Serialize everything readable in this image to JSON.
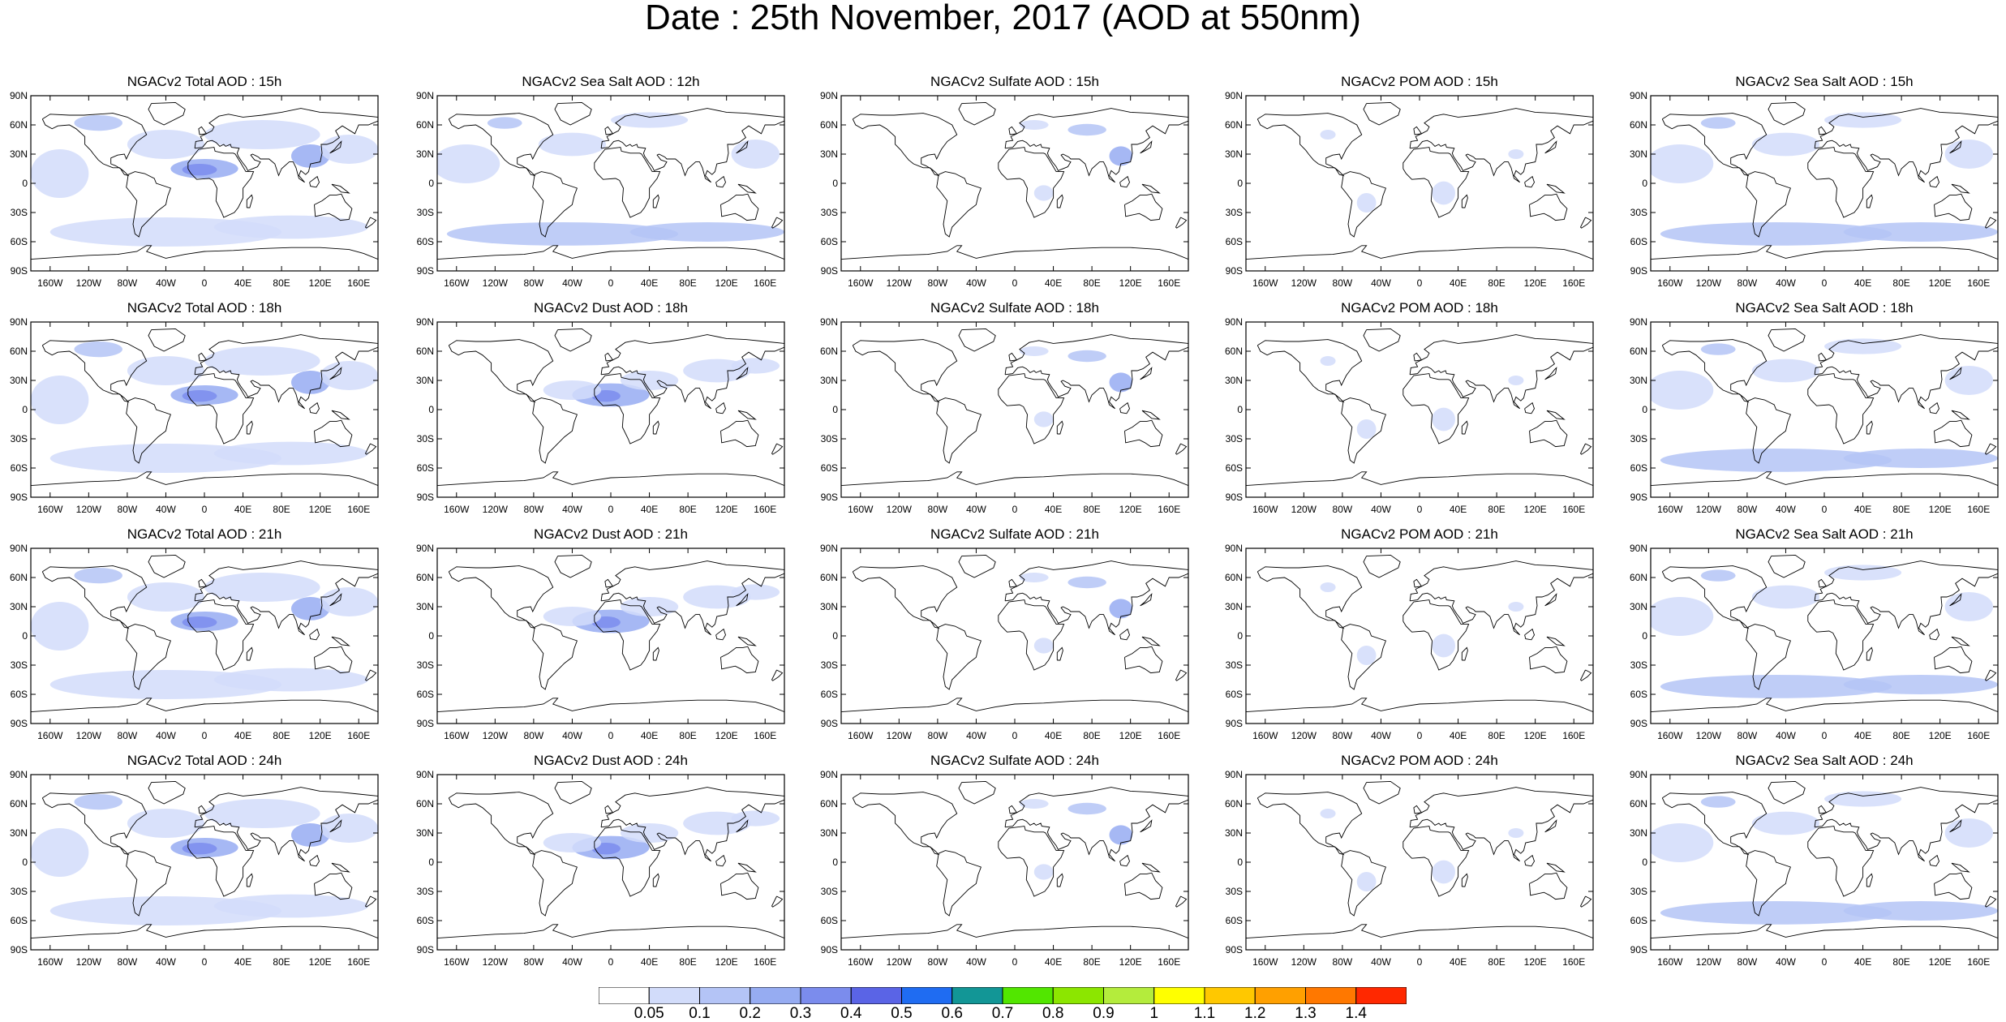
{
  "title": "Date : 25th November, 2017 (AOD at 550nm)",
  "axes": {
    "lat_labels": [
      "90N",
      "60N",
      "30N",
      "0",
      "30S",
      "60S",
      "90S"
    ],
    "lon_labels": [
      "160W",
      "120W",
      "80W",
      "40W",
      "0",
      "40E",
      "80E",
      "120E",
      "160E"
    ]
  },
  "colors": {
    "levels": [
      "#ffffff",
      "#d2dcfa",
      "#b4c4f6",
      "#96acf2",
      "#7b8ced",
      "#5a64e6",
      "#1f6cf2",
      "#129696",
      "#52e600",
      "#8ce600",
      "#b4ec3c",
      "#ffff00",
      "#ffc800",
      "#ffa000",
      "#ff7800",
      "#ff2800"
    ],
    "coast": "#000000"
  },
  "panels": [
    [
      "NGACv2 Total AOD : 15h",
      "NGACv2 Sea Salt  AOD : 12h",
      "NGACv2 Sulfate AOD : 15h",
      "NGACv2 POM AOD : 15h",
      "NGACv2 Sea Salt AOD : 15h"
    ],
    [
      "NGACv2 Total AOD : 18h",
      "NGACv2 Dust AOD : 18h",
      "NGACv2 Sulfate AOD : 18h",
      "NGACv2 POM AOD : 18h",
      "NGACv2 Sea Salt AOD : 18h"
    ],
    [
      "NGACv2 Total AOD : 21h",
      "NGACv2 Dust AOD : 21h",
      "NGACv2 Sulfate AOD : 21h",
      "NGACv2 POM AOD : 21h",
      "NGACv2 Sea Salt AOD : 21h"
    ],
    [
      "NGACv2 Total AOD : 24h",
      "NGACv2 Dust AOD : 24h",
      "NGACv2 Sulfate AOD : 24h",
      "NGACv2 POM AOD : 24h",
      "NGACv2 Sea Salt AOD : 24h"
    ]
  ],
  "colorbar": {
    "labels": [
      "0.05",
      "0.1",
      "0.2",
      "0.3",
      "0.4",
      "0.5",
      "0.6",
      "0.7",
      "0.8",
      "0.9",
      "1",
      "1.1",
      "1.2",
      "1.3",
      "1.4"
    ]
  }
}
